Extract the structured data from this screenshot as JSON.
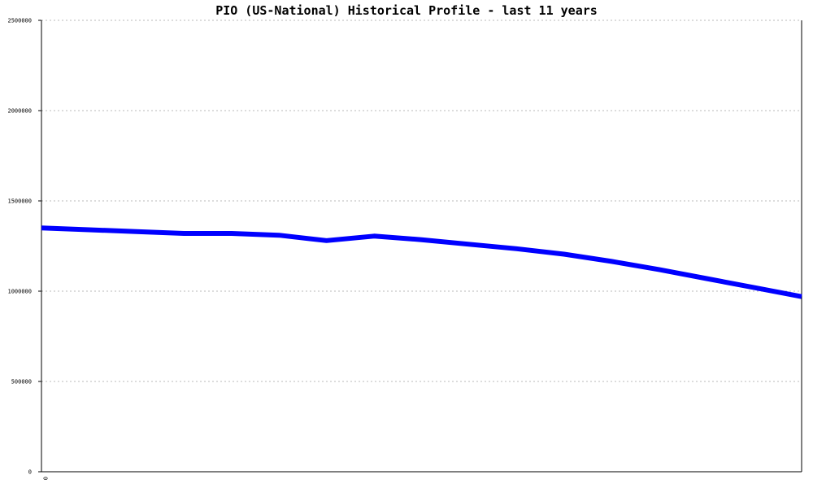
{
  "chart_data": {
    "type": "line",
    "title": "PIO (US-National) Historical Profile - last 11 years",
    "xlabel": "",
    "ylabel": "",
    "ylim": [
      0,
      2500000
    ],
    "yticks": [
      "0",
      "500000",
      "1000000",
      "1500000",
      "2000000",
      "2500000"
    ],
    "xticks": [
      "0"
    ],
    "grid": true,
    "series": [
      {
        "color": "#0000ff",
        "x": [
          0,
          0.0625,
          0.125,
          0.1875,
          0.25,
          0.3125,
          0.375,
          0.4375,
          0.5,
          0.5625,
          0.625,
          0.6875,
          0.75,
          0.8125,
          0.875,
          0.9375,
          1
        ],
        "values": [
          1350000,
          1340000,
          1330000,
          1320000,
          1320000,
          1310000,
          1280000,
          1305000,
          1285000,
          1260000,
          1235000,
          1205000,
          1165000,
          1120000,
          1070000,
          1020000,
          970000
        ]
      }
    ]
  }
}
